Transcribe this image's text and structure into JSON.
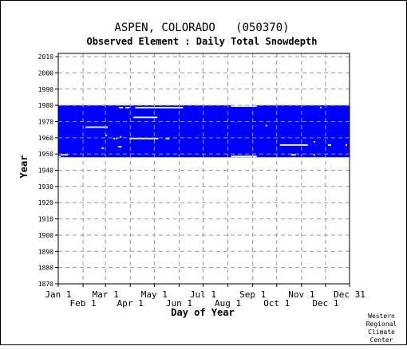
{
  "chart_data": {
    "type": "heatmap",
    "title": "ASPEN, COLORADO   (050370)",
    "subtitle": "Observed Element : Daily Total Snowdepth",
    "xlabel": "Day of Year",
    "ylabel": "Year",
    "credit": [
      "Western",
      "Regional",
      "Climate",
      "Center"
    ],
    "xlim": [
      1,
      365
    ],
    "ylim": [
      1870,
      2012
    ],
    "grid": true,
    "colors": {
      "data": "#0000ff",
      "grid": "#999999",
      "axis": "#000000"
    },
    "x_ticks_upper": [
      {
        "label": "Jan 1",
        "day": 1
      },
      {
        "label": "Mar 1",
        "day": 60
      },
      {
        "label": "May 1",
        "day": 121
      },
      {
        "label": "Jul 1",
        "day": 182
      },
      {
        "label": "Sep 1",
        "day": 244
      },
      {
        "label": "Nov 1",
        "day": 305
      },
      {
        "label": "Dec 31",
        "day": 365
      }
    ],
    "x_ticks_lower": [
      {
        "label": "Feb 1",
        "day": 32
      },
      {
        "label": "Apr 1",
        "day": 91
      },
      {
        "label": "Jun 1",
        "day": 152
      },
      {
        "label": "Aug 1",
        "day": 213
      },
      {
        "label": "Oct 1",
        "day": 274
      },
      {
        "label": "Dec 1",
        "day": 335
      }
    ],
    "y_ticks": [
      2010,
      2000,
      1990,
      1980,
      1970,
      1960,
      1950,
      1940,
      1930,
      1920,
      1910,
      1900,
      1890,
      1880,
      1870
    ],
    "data_coverage": {
      "first_year": 1948,
      "last_year": 1979
    },
    "gaps": [
      {
        "start_day": 4,
        "end_day": 12,
        "year": 1949
      },
      {
        "start_day": 1,
        "end_day": 3,
        "year": 1948
      },
      {
        "start_day": 35,
        "end_day": 62,
        "year": 1966
      },
      {
        "start_day": 55,
        "end_day": 57,
        "year": 1953
      },
      {
        "start_day": 60,
        "end_day": 61,
        "year": 1961
      },
      {
        "start_day": 76,
        "end_day": 79,
        "year": 1954
      },
      {
        "start_day": 77,
        "end_day": 81,
        "year": 1978
      },
      {
        "start_day": 85,
        "end_day": 89,
        "year": 1978
      },
      {
        "start_day": 78,
        "end_day": 79,
        "year": 1960
      },
      {
        "start_day": 70,
        "end_day": 71,
        "year": 1959
      },
      {
        "start_day": 73,
        "end_day": 74,
        "year": 1959
      },
      {
        "start_day": 90,
        "end_day": 125,
        "year": 1959
      },
      {
        "start_day": 95,
        "end_day": 124,
        "year": 1972
      },
      {
        "start_day": 97,
        "end_day": 156,
        "year": 1978
      },
      {
        "start_day": 135,
        "end_day": 139,
        "year": 1959
      },
      {
        "start_day": 1,
        "end_day": 60,
        "year": 1980
      },
      {
        "start_day": 217,
        "end_day": 248,
        "year": 1979
      },
      {
        "start_day": 217,
        "end_day": 248,
        "year": 1948
      },
      {
        "start_day": 260,
        "end_day": 261,
        "year": 1967
      },
      {
        "start_day": 278,
        "end_day": 312,
        "year": 1955
      },
      {
        "start_day": 292,
        "end_day": 297,
        "year": 1949
      },
      {
        "start_day": 320,
        "end_day": 321,
        "year": 1949
      },
      {
        "start_day": 328,
        "end_day": 329,
        "year": 1978
      },
      {
        "start_day": 320,
        "end_day": 321,
        "year": 1957
      },
      {
        "start_day": 338,
        "end_day": 341,
        "year": 1955
      },
      {
        "start_day": 360,
        "end_day": 361,
        "year": 1955
      }
    ]
  }
}
